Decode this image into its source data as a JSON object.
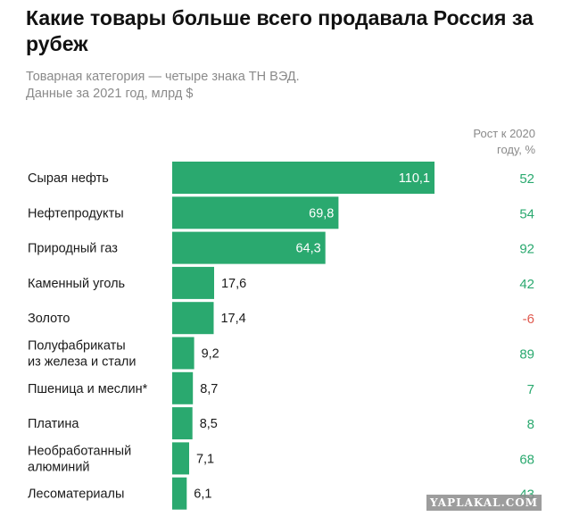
{
  "header": {
    "title": "Какие товары больше всего продавала Россия за рубеж",
    "subtitle_line1": "Товарная категория — четыре знака ТН ВЭД.",
    "subtitle_line2": "Данные за 2021 год, млрд $",
    "growth_header_line1": "Рост к 2020",
    "growth_header_line2": "году, %"
  },
  "watermark": "YAPLAKAL.COM",
  "colors": {
    "bar": "#2aa96f",
    "growth_positive": "#2aa96f",
    "growth_negative": "#e05a4f"
  },
  "chart_data": {
    "type": "bar",
    "orientation": "horizontal",
    "title": "Какие товары больше всего продавала Россия за рубеж",
    "categories": [
      [
        "Сырая нефть"
      ],
      [
        "Нефтепродукты"
      ],
      [
        "Природный газ"
      ],
      [
        "Каменный уголь"
      ],
      [
        "Золото"
      ],
      [
        "Полуфабрикаты",
        "из железа и стали"
      ],
      [
        "Пшеница и меслин*"
      ],
      [
        "Платина"
      ],
      [
        "Необработанный",
        "алюминий"
      ],
      [
        "Лесоматериалы"
      ]
    ],
    "values": [
      110.1,
      69.8,
      64.3,
      17.6,
      17.4,
      9.2,
      8.7,
      8.5,
      7.1,
      6.1
    ],
    "value_labels": [
      "110,1",
      "69,8",
      "64,3",
      "17,6",
      "17,4",
      "9,2",
      "8,7",
      "8,5",
      "7,1",
      "6,1"
    ],
    "growth": [
      52,
      54,
      92,
      42,
      -6,
      89,
      7,
      8,
      68,
      43
    ],
    "growth_labels": [
      "52",
      "54",
      "92",
      "42",
      "-6",
      "89",
      "7",
      "8",
      "68",
      "43"
    ],
    "xlim": [
      0,
      110.1
    ]
  }
}
